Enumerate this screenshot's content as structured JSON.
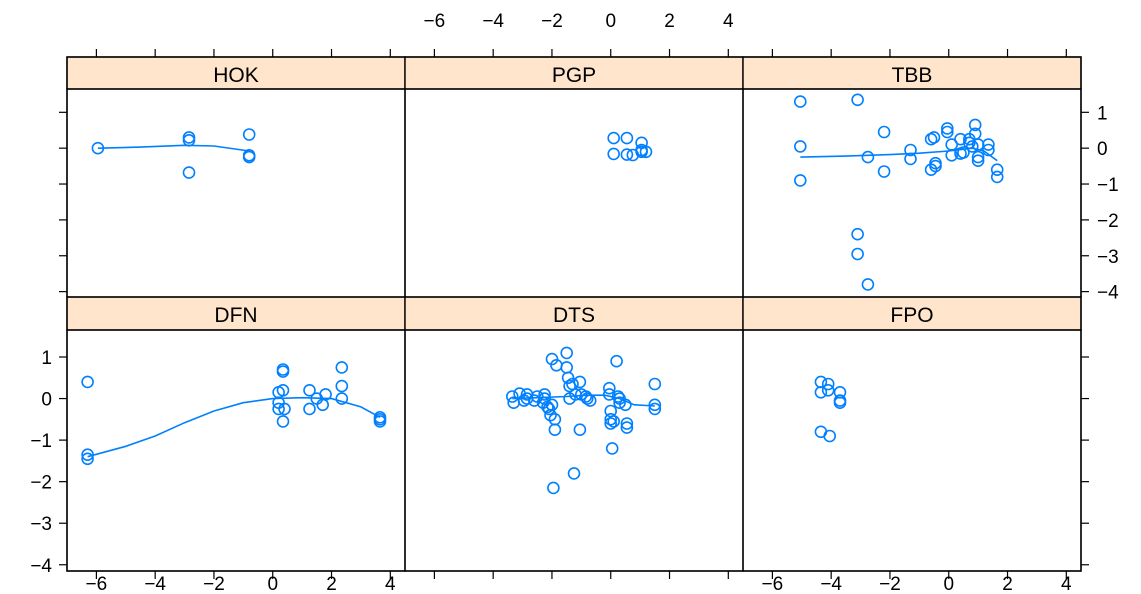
{
  "chart_data": {
    "type": "scatter",
    "layout": "trellis 3 columns x 2 rows",
    "colors": {
      "points": "#0080ff",
      "strip": "#ffe5cc",
      "frame": "#000000"
    },
    "xlim": [
      -7,
      4.5
    ],
    "ylim": [
      -4.15,
      1.65
    ],
    "x_ticks": [
      -6,
      -4,
      -2,
      0,
      2,
      4
    ],
    "x_tick_labels": [
      "−6",
      "−4",
      "−2",
      "0",
      "2",
      "4"
    ],
    "y_ticks": [
      -4,
      -3,
      -2,
      -1,
      0,
      1
    ],
    "y_tick_labels": [
      "−4",
      "−3",
      "−2",
      "−1",
      "0",
      "1"
    ],
    "panels": [
      {
        "name": "HOK",
        "points": [
          [
            -5.95,
            0.0
          ],
          [
            -2.85,
            0.3
          ],
          [
            -2.85,
            0.22
          ],
          [
            -2.85,
            -0.68
          ],
          [
            -0.8,
            0.38
          ],
          [
            -0.8,
            -0.2
          ],
          [
            -0.8,
            -0.25
          ]
        ],
        "smooth": [
          [
            -5.95,
            0.0
          ],
          [
            -4.5,
            0.03
          ],
          [
            -3,
            0.08
          ],
          [
            -2,
            0.06
          ],
          [
            -0.8,
            -0.08
          ]
        ]
      },
      {
        "name": "PGP",
        "points": [
          [
            0.1,
            0.28
          ],
          [
            0.1,
            -0.16
          ],
          [
            0.55,
            0.28
          ],
          [
            0.55,
            -0.18
          ],
          [
            0.75,
            -0.19
          ],
          [
            1.05,
            0.15
          ],
          [
            1.05,
            -0.05
          ],
          [
            1.05,
            -0.1
          ],
          [
            1.2,
            -0.1
          ]
        ],
        "smooth": []
      },
      {
        "name": "TBB",
        "points": [
          [
            -5.05,
            1.3
          ],
          [
            -5.05,
            0.05
          ],
          [
            -5.05,
            -0.9
          ],
          [
            -3.1,
            1.35
          ],
          [
            -3.1,
            -2.4
          ],
          [
            -3.1,
            -2.95
          ],
          [
            -2.75,
            -0.25
          ],
          [
            -2.75,
            -3.8
          ],
          [
            -2.2,
            0.45
          ],
          [
            -2.2,
            -0.65
          ],
          [
            -1.3,
            -0.05
          ],
          [
            -1.3,
            -0.3
          ],
          [
            -0.6,
            0.25
          ],
          [
            -0.6,
            -0.6
          ],
          [
            -0.5,
            0.3
          ],
          [
            -0.45,
            -0.5
          ],
          [
            -0.45,
            -0.42
          ],
          [
            -0.05,
            0.45
          ],
          [
            -0.05,
            0.55
          ],
          [
            0.1,
            0.1
          ],
          [
            0.1,
            -0.2
          ],
          [
            0.4,
            0.25
          ],
          [
            0.4,
            -0.15
          ],
          [
            0.5,
            -0.12
          ],
          [
            0.7,
            0.15
          ],
          [
            0.7,
            0.25
          ],
          [
            0.8,
            0.05
          ],
          [
            0.9,
            0.4
          ],
          [
            0.9,
            0.65
          ],
          [
            1.0,
            0.1
          ],
          [
            1.0,
            -0.25
          ],
          [
            1.0,
            -0.35
          ],
          [
            1.35,
            0.1
          ],
          [
            1.35,
            -0.05
          ],
          [
            1.65,
            -0.6
          ],
          [
            1.65,
            -0.8
          ]
        ],
        "smooth": [
          [
            -5.05,
            -0.25
          ],
          [
            -3.5,
            -0.22
          ],
          [
            -2,
            -0.18
          ],
          [
            -1,
            -0.14
          ],
          [
            0,
            -0.08
          ],
          [
            0.8,
            0.0
          ],
          [
            1.2,
            -0.08
          ],
          [
            1.65,
            -0.35
          ]
        ]
      },
      {
        "name": "DFN",
        "points": [
          [
            -6.3,
            0.4
          ],
          [
            -6.3,
            -1.35
          ],
          [
            -6.3,
            -1.45
          ],
          [
            0.2,
            0.15
          ],
          [
            0.2,
            -0.1
          ],
          [
            0.2,
            -0.25
          ],
          [
            0.35,
            0.7
          ],
          [
            0.35,
            0.65
          ],
          [
            0.35,
            0.2
          ],
          [
            0.35,
            -0.55
          ],
          [
            0.4,
            -0.25
          ],
          [
            1.25,
            0.2
          ],
          [
            1.25,
            -0.25
          ],
          [
            1.5,
            0.0
          ],
          [
            1.7,
            -0.15
          ],
          [
            1.8,
            0.1
          ],
          [
            2.35,
            0.75
          ],
          [
            2.35,
            0.3
          ],
          [
            2.35,
            0.0
          ],
          [
            3.65,
            -0.45
          ],
          [
            3.65,
            -0.5
          ],
          [
            3.65,
            -0.55
          ]
        ],
        "smooth": [
          [
            -6.3,
            -1.4
          ],
          [
            -5,
            -1.15
          ],
          [
            -4,
            -0.9
          ],
          [
            -3,
            -0.58
          ],
          [
            -2,
            -0.3
          ],
          [
            -1,
            -0.1
          ],
          [
            0,
            0.0
          ],
          [
            1,
            0.02
          ],
          [
            2,
            0.0
          ],
          [
            3,
            -0.2
          ],
          [
            3.65,
            -0.45
          ]
        ]
      },
      {
        "name": "DTS",
        "points": [
          [
            -3.35,
            0.05
          ],
          [
            -3.3,
            -0.1
          ],
          [
            -3.1,
            0.12
          ],
          [
            -2.95,
            -0.05
          ],
          [
            -2.85,
            0.1
          ],
          [
            -2.85,
            0.0
          ],
          [
            -2.6,
            -0.05
          ],
          [
            -2.5,
            0.05
          ],
          [
            -2.3,
            -0.1
          ],
          [
            -2.25,
            0.1
          ],
          [
            -2.25,
            0.0
          ],
          [
            -2.15,
            -0.2
          ],
          [
            -2.1,
            -0.25
          ],
          [
            -2.05,
            -0.4
          ],
          [
            -2.0,
            -0.15
          ],
          [
            -2.0,
            0.95
          ],
          [
            -1.9,
            -0.5
          ],
          [
            -1.9,
            -0.75
          ],
          [
            -1.95,
            -2.15
          ],
          [
            -1.85,
            0.8
          ],
          [
            -1.5,
            1.1
          ],
          [
            -1.5,
            0.75
          ],
          [
            -1.45,
            0.5
          ],
          [
            -1.4,
            0.3
          ],
          [
            -1.4,
            0.0
          ],
          [
            -1.3,
            0.35
          ],
          [
            -1.25,
            -1.8
          ],
          [
            -1.2,
            0.1
          ],
          [
            -1.05,
            -0.75
          ],
          [
            -1.05,
            0.4
          ],
          [
            -1.0,
            0.1
          ],
          [
            -0.85,
            0.05
          ],
          [
            -0.8,
            0.0
          ],
          [
            -0.7,
            -0.05
          ],
          [
            -0.05,
            0.25
          ],
          [
            -0.05,
            0.1
          ],
          [
            0.0,
            -0.3
          ],
          [
            0.0,
            -0.5
          ],
          [
            0.0,
            -0.6
          ],
          [
            0.05,
            -1.2
          ],
          [
            0.1,
            -0.55
          ],
          [
            0.2,
            0.9
          ],
          [
            0.25,
            0.05
          ],
          [
            0.3,
            0.0
          ],
          [
            0.3,
            -0.1
          ],
          [
            0.5,
            -0.15
          ],
          [
            0.55,
            -0.6
          ],
          [
            0.55,
            -0.7
          ],
          [
            1.5,
            0.35
          ],
          [
            1.5,
            -0.15
          ],
          [
            1.5,
            -0.25
          ]
        ],
        "smooth": [
          [
            -3.35,
            0.0
          ],
          [
            -2.5,
            0.02
          ],
          [
            -1.5,
            0.05
          ],
          [
            -0.8,
            0.08
          ],
          [
            -0.2,
            0.08
          ],
          [
            0.3,
            0.0
          ],
          [
            0.8,
            -0.15
          ],
          [
            1.5,
            -0.18
          ]
        ]
      },
      {
        "name": "FPO",
        "points": [
          [
            -4.35,
            0.4
          ],
          [
            -4.35,
            0.15
          ],
          [
            -4.35,
            -0.8
          ],
          [
            -4.1,
            0.35
          ],
          [
            -4.1,
            0.2
          ],
          [
            -4.05,
            -0.9
          ],
          [
            -3.7,
            0.15
          ],
          [
            -3.7,
            -0.05
          ],
          [
            -3.7,
            -0.1
          ]
        ],
        "smooth": []
      }
    ]
  }
}
